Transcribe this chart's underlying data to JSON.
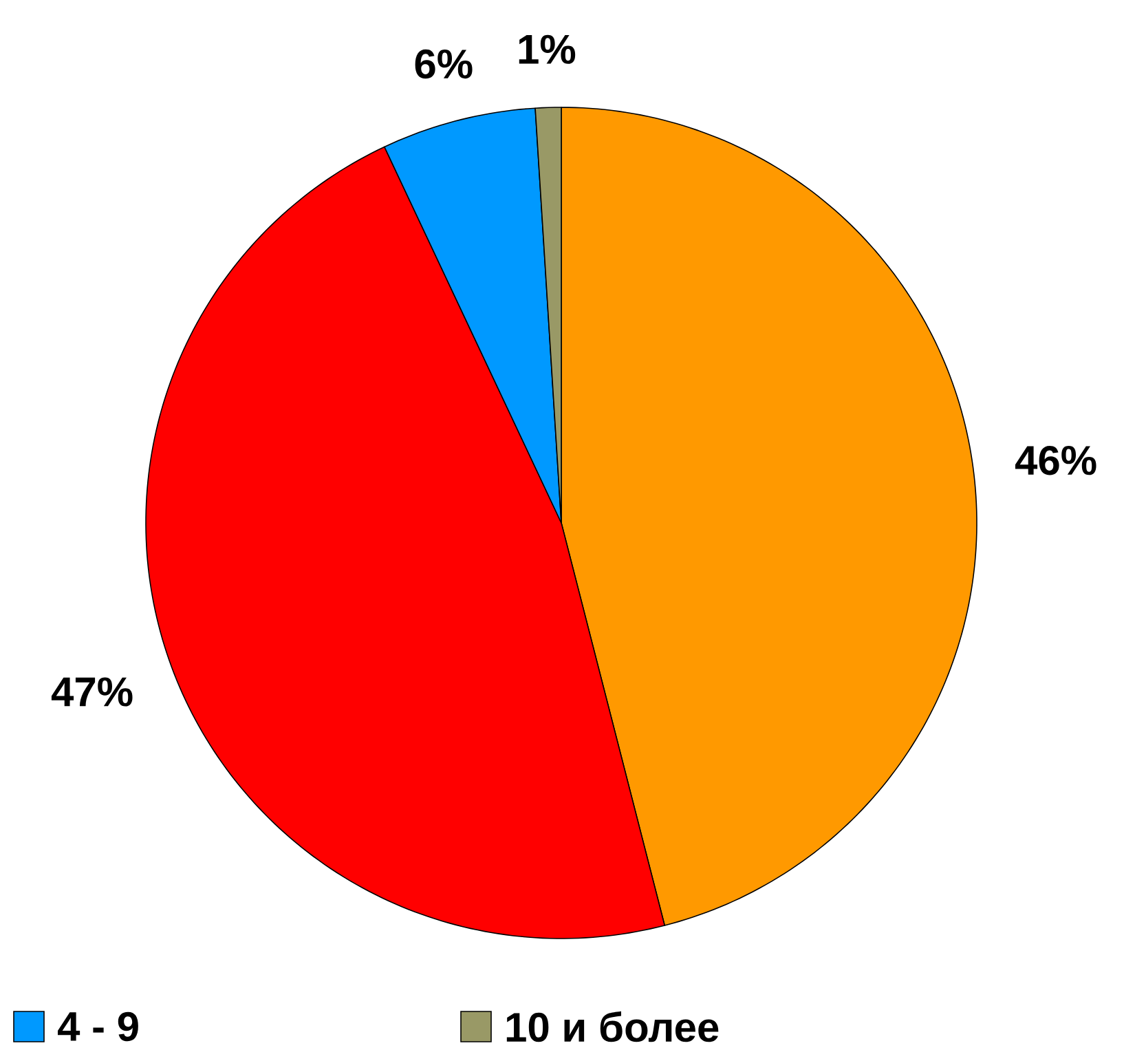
{
  "chart_data": {
    "type": "pie",
    "categories": [
      null,
      null,
      "4 - 9",
      "10 и более"
    ],
    "values": [
      46,
      47,
      6,
      1
    ],
    "colors": [
      "#ff9900",
      "#ff0000",
      "#0099ff",
      "#999966"
    ],
    "value_labels": [
      "46%",
      "47%",
      "6%",
      "1%"
    ],
    "legend": "bottom"
  }
}
